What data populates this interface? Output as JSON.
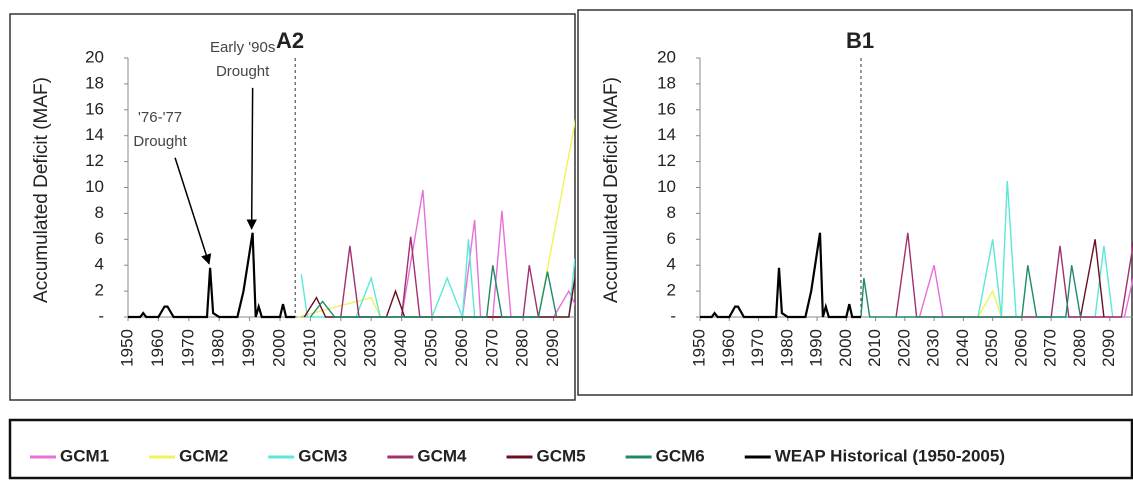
{
  "chart_data": [
    {
      "type": "line",
      "title": "A2",
      "y_label": "Accumulated Deficit (MAF)",
      "xlim": [
        1950,
        2100
      ],
      "ylim": [
        0,
        20
      ],
      "xticks": [
        1950,
        1960,
        1970,
        1980,
        1990,
        2000,
        2010,
        2020,
        2030,
        2040,
        2050,
        2060,
        2070,
        2080,
        2090
      ],
      "yticks": [
        {
          "value": 0,
          "label": "-"
        },
        2,
        4,
        6,
        8,
        10,
        12,
        14,
        16,
        18,
        20
      ],
      "divider": 2005,
      "annotations": [
        {
          "text": [
            "'76-'77",
            "Drought"
          ],
          "x": 1977,
          "y": 3.8
        },
        {
          "text": [
            "Early '90s",
            "Drought"
          ],
          "x": 1991,
          "y": 6.5
        }
      ],
      "series": [
        {
          "name": "GCM1",
          "color": "#e86fd8",
          "x": [
            2040,
            2047,
            2050,
            2060,
            2064,
            2066,
            2070,
            2073,
            2076,
            2090,
            2095,
            2099
          ],
          "values": [
            0,
            9.8,
            0,
            0,
            7.5,
            0,
            0,
            8.2,
            0,
            0,
            2,
            0
          ]
        },
        {
          "name": "GCM2",
          "color": "#f2f25a",
          "x": [
            2006,
            2030,
            2033,
            2085,
            2099
          ],
          "values": [
            0,
            1.5,
            0,
            0,
            17.5
          ]
        },
        {
          "name": "GCM3",
          "color": "#5ce8d8",
          "x": [
            2007,
            2009,
            2025,
            2030,
            2033,
            2050,
            2055,
            2060,
            2062,
            2064,
            2095,
            2097,
            2099
          ],
          "values": [
            3.3,
            0,
            0,
            3,
            0,
            0,
            3,
            0,
            6,
            0,
            0,
            4.5,
            0
          ]
        },
        {
          "name": "GCM4",
          "color": "#a0306e",
          "x": [
            2020,
            2023,
            2026,
            2040,
            2043,
            2046,
            2080,
            2082,
            2085
          ],
          "values": [
            0,
            5.5,
            0,
            0,
            6.2,
            0,
            0,
            4,
            0
          ]
        },
        {
          "name": "GCM5",
          "color": "#6a1020",
          "x": [
            2008,
            2012,
            2015,
            2035,
            2038,
            2041,
            2095,
            2098
          ],
          "values": [
            0,
            1.5,
            0,
            0,
            2,
            0,
            0,
            4.5
          ]
        },
        {
          "name": "GCM6",
          "color": "#1e8a6a",
          "x": [
            2010,
            2014,
            2018,
            2068,
            2070,
            2073,
            2085,
            2088,
            2091
          ],
          "values": [
            0,
            1.2,
            0,
            0,
            4,
            0,
            0,
            3.5,
            0
          ]
        },
        {
          "name": "WEAP Historical (1950-2005)",
          "color": "#000000",
          "x": [
            1950,
            1954,
            1955,
            1956,
            1960,
            1962,
            1963,
            1965,
            1976,
            1977,
            1978,
            1980,
            1986,
            1988,
            1991,
            1992,
            1993,
            1994,
            2000,
            2001,
            2002,
            2005
          ],
          "values": [
            0,
            0,
            0.3,
            0,
            0,
            0.8,
            0.8,
            0,
            0,
            3.8,
            0.3,
            0,
            0,
            2,
            6.5,
            0,
            0.8,
            0,
            0,
            1,
            0,
            0
          ]
        }
      ]
    },
    {
      "type": "line",
      "title": "B1",
      "y_label": "Accumulated Deficit (MAF)",
      "xlim": [
        1950,
        2100
      ],
      "ylim": [
        0,
        20
      ],
      "xticks": [
        1950,
        1960,
        1970,
        1980,
        1990,
        2000,
        2010,
        2020,
        2030,
        2040,
        2050,
        2060,
        2070,
        2080,
        2090
      ],
      "yticks": [
        {
          "value": 0,
          "label": "-"
        },
        2,
        4,
        6,
        8,
        10,
        12,
        14,
        16,
        18,
        20
      ],
      "divider": 2005,
      "series": [
        {
          "name": "GCM1",
          "color": "#e86fd8",
          "x": [
            2025,
            2030,
            2033,
            2095,
            2099
          ],
          "values": [
            0,
            4,
            0,
            0,
            4
          ]
        },
        {
          "name": "GCM2",
          "color": "#f2f25a",
          "x": [
            2045,
            2050,
            2053
          ],
          "values": [
            0,
            2,
            0
          ]
        },
        {
          "name": "GCM3",
          "color": "#5ce8d8",
          "x": [
            2045,
            2050,
            2053,
            2055,
            2058,
            2085,
            2088,
            2091
          ],
          "values": [
            0,
            6,
            0,
            10.5,
            0,
            0,
            5.5,
            0
          ]
        },
        {
          "name": "GCM4",
          "color": "#a0306e",
          "x": [
            2017,
            2021,
            2024,
            2070,
            2073,
            2076,
            2094,
            2099
          ],
          "values": [
            0,
            6.5,
            0,
            0,
            5.5,
            0,
            0,
            7
          ]
        },
        {
          "name": "GCM5",
          "color": "#6a1020",
          "x": [
            2080,
            2085,
            2088
          ],
          "values": [
            0,
            6,
            0
          ]
        },
        {
          "name": "GCM6",
          "color": "#1e8a6a",
          "x": [
            2005,
            2006,
            2008,
            2060,
            2062,
            2065,
            2075,
            2077,
            2080
          ],
          "values": [
            0,
            3,
            0,
            0,
            4,
            0,
            0,
            4,
            0
          ]
        },
        {
          "name": "WEAP Historical (1950-2005)",
          "color": "#000000",
          "x": [
            1950,
            1954,
            1955,
            1956,
            1960,
            1962,
            1963,
            1965,
            1976,
            1977,
            1978,
            1980,
            1986,
            1988,
            1991,
            1992,
            1993,
            1994,
            2000,
            2001,
            2002,
            2005
          ],
          "values": [
            0,
            0,
            0.3,
            0,
            0,
            0.8,
            0.8,
            0,
            0,
            3.8,
            0.3,
            0,
            0,
            2,
            6.5,
            0,
            0.8,
            0,
            0,
            1,
            0,
            0
          ]
        }
      ]
    }
  ]
}
